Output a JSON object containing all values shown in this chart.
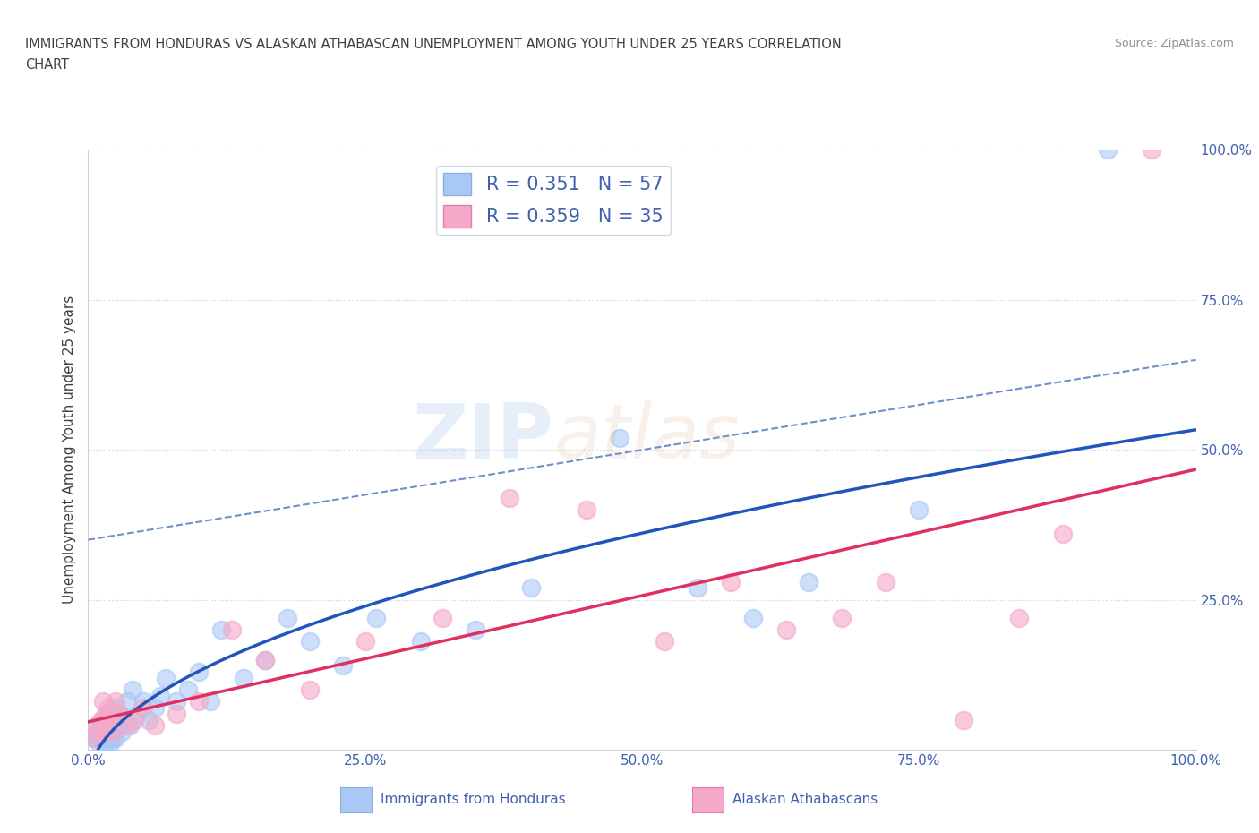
{
  "title_line1": "IMMIGRANTS FROM HONDURAS VS ALASKAN ATHABASCAN UNEMPLOYMENT AMONG YOUTH UNDER 25 YEARS CORRELATION",
  "title_line2": "CHART",
  "source": "Source: ZipAtlas.com",
  "ylabel": "Unemployment Among Youth under 25 years",
  "legend_label1": "Immigrants from Honduras",
  "legend_label2": "Alaskan Athabascans",
  "R1": 0.351,
  "N1": 57,
  "R2": 0.359,
  "N2": 35,
  "color1": "#aac8f5",
  "color2": "#f5a8c8",
  "line_color1": "#2255bb",
  "line_color2": "#e03060",
  "dashed_line_color": "#7090cc",
  "xlim": [
    0.0,
    1.0
  ],
  "ylim": [
    0.0,
    1.0
  ],
  "xticks": [
    0.0,
    0.25,
    0.5,
    0.75,
    1.0
  ],
  "yticks": [
    0.0,
    0.25,
    0.5,
    0.75,
    1.0
  ],
  "xtick_labels": [
    "0.0%",
    "25.0%",
    "50.0%",
    "75.0%",
    "100.0%"
  ],
  "ytick_labels": [
    "",
    "25.0%",
    "50.0%",
    "75.0%",
    "100.0%"
  ],
  "blue_x": [
    0.005,
    0.007,
    0.008,
    0.01,
    0.01,
    0.012,
    0.013,
    0.013,
    0.015,
    0.015,
    0.016,
    0.016,
    0.017,
    0.018,
    0.018,
    0.019,
    0.02,
    0.02,
    0.021,
    0.022,
    0.022,
    0.023,
    0.025,
    0.025,
    0.027,
    0.028,
    0.03,
    0.032,
    0.035,
    0.038,
    0.04,
    0.045,
    0.05,
    0.055,
    0.06,
    0.065,
    0.07,
    0.08,
    0.09,
    0.1,
    0.11,
    0.12,
    0.14,
    0.16,
    0.18,
    0.2,
    0.23,
    0.26,
    0.3,
    0.35,
    0.4,
    0.48,
    0.55,
    0.6,
    0.65,
    0.75,
    0.92
  ],
  "blue_y": [
    0.02,
    0.03,
    0.02,
    0.01,
    0.04,
    0.02,
    0.03,
    0.05,
    0.02,
    0.04,
    0.01,
    0.03,
    0.05,
    0.02,
    0.04,
    0.06,
    0.01,
    0.03,
    0.04,
    0.02,
    0.05,
    0.03,
    0.07,
    0.02,
    0.04,
    0.06,
    0.03,
    0.05,
    0.08,
    0.04,
    0.1,
    0.06,
    0.08,
    0.05,
    0.07,
    0.09,
    0.12,
    0.08,
    0.1,
    0.13,
    0.08,
    0.2,
    0.12,
    0.15,
    0.22,
    0.18,
    0.14,
    0.22,
    0.18,
    0.2,
    0.27,
    0.52,
    0.27,
    0.22,
    0.28,
    0.4,
    1.0
  ],
  "pink_x": [
    0.005,
    0.007,
    0.01,
    0.012,
    0.013,
    0.015,
    0.016,
    0.017,
    0.018,
    0.02,
    0.022,
    0.025,
    0.028,
    0.035,
    0.042,
    0.05,
    0.06,
    0.08,
    0.1,
    0.13,
    0.16,
    0.2,
    0.25,
    0.32,
    0.38,
    0.45,
    0.52,
    0.58,
    0.63,
    0.68,
    0.72,
    0.79,
    0.84,
    0.88,
    0.96
  ],
  "pink_y": [
    0.02,
    0.04,
    0.03,
    0.05,
    0.08,
    0.03,
    0.06,
    0.04,
    0.07,
    0.05,
    0.03,
    0.08,
    0.06,
    0.04,
    0.05,
    0.07,
    0.04,
    0.06,
    0.08,
    0.2,
    0.15,
    0.1,
    0.18,
    0.22,
    0.42,
    0.4,
    0.18,
    0.28,
    0.2,
    0.22,
    0.28,
    0.05,
    0.22,
    0.36,
    1.0
  ],
  "background_color": "#ffffff",
  "grid_color": "#c8d0dc",
  "title_color": "#404040",
  "source_color": "#909090",
  "axis_label_color": "#404040",
  "tick_label_color": "#4060b0",
  "figsize": [
    14.06,
    9.3
  ]
}
